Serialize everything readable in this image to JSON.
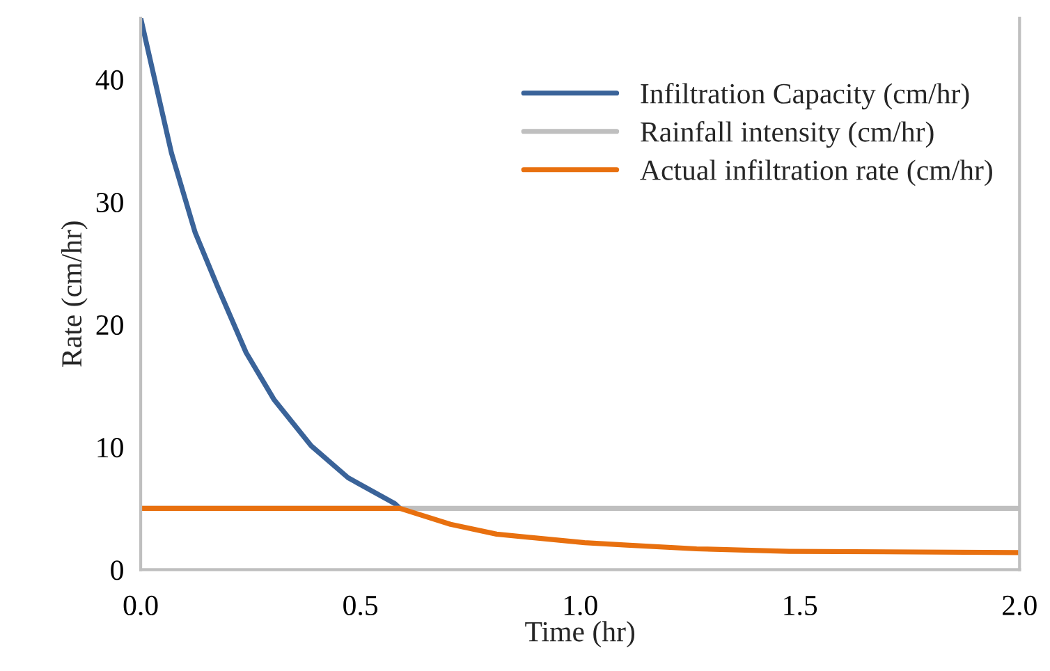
{
  "chart_data": {
    "type": "line",
    "xlabel": "Time (hr)",
    "ylabel": "Rate (cm/hr)",
    "xlim": [
      0,
      2
    ],
    "xticks": [
      {
        "value": 0,
        "label": "0.0"
      },
      0.5,
      {
        "value": 1,
        "label": "1.0"
      },
      1.5,
      {
        "value": 2,
        "label": "2.0"
      }
    ],
    "ylim": [
      0,
      45
    ],
    "yticks": [
      0,
      10,
      20,
      30,
      40
    ],
    "grid": false,
    "legend": "top right",
    "marker": "none",
    "line_style": "solid",
    "series": [
      {
        "name": "Infiltration Capacity (cm/hr)",
        "color": "#3a6399",
        "x": [
          0,
          0.07,
          0.124,
          0.176,
          0.24,
          0.303,
          0.388,
          0.472,
          0.578,
          0.59
        ],
        "values": [
          45,
          34,
          27.5,
          23,
          17.7,
          13.9,
          10.1,
          7.5,
          5.4,
          5
        ]
      },
      {
        "name": "Rainfall intensity (cm/hr)",
        "color": "#bfbfbf",
        "x": [
          0,
          2
        ],
        "values": [
          5,
          5
        ]
      },
      {
        "name": "Actual infiltration rate (cm/hr)",
        "color": "#e8700f",
        "x": [
          0,
          0.59,
          0.705,
          0.81,
          1.01,
          1.106,
          1.265,
          1.476,
          2.0
        ],
        "values": [
          5,
          5,
          3.7,
          2.9,
          2.2,
          2.0,
          1.7,
          1.5,
          1.4
        ]
      }
    ]
  }
}
